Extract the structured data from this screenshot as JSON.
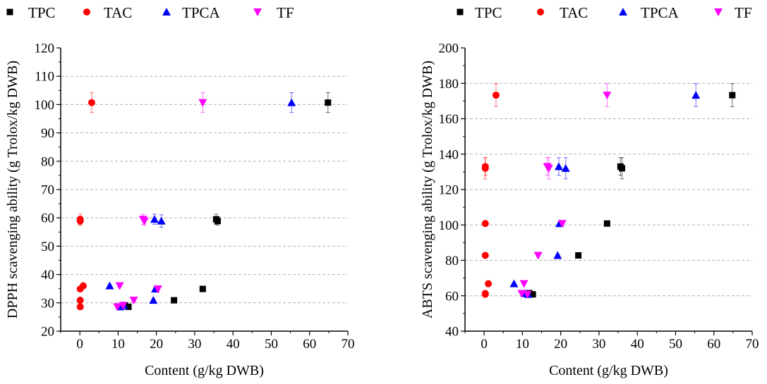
{
  "chart_data": [
    {
      "type": "scatter",
      "title": "",
      "xlabel": "Content (g/kg DWB)",
      "ylabel": "DPPH scavenging ability (g Trolox/kg DWB)",
      "xlim": [
        -5,
        70
      ],
      "ylim": [
        20,
        120
      ],
      "xticks": [
        0,
        10,
        20,
        30,
        40,
        50,
        60,
        70
      ],
      "yticks": [
        20,
        30,
        40,
        50,
        60,
        70,
        80,
        90,
        100,
        110,
        120
      ],
      "xtick_labels": [
        "0",
        "10",
        "20",
        "30",
        "40",
        "50",
        "60",
        "70"
      ],
      "ytick_labels": [
        "20",
        "30",
        "40",
        "50",
        "60",
        "70",
        "80",
        "90",
        "100",
        "110",
        "120"
      ],
      "grid": "horizontal dashed",
      "legend_position": "top",
      "series": [
        {
          "name": "TPC",
          "marker": "square",
          "color": "#000000",
          "points": [
            {
              "x": 64.8,
              "y": 100.7,
              "err": 3.5
            },
            {
              "x": 35.6,
              "y": 59.5,
              "err": 1.8
            },
            {
              "x": 36.0,
              "y": 58.9,
              "err": 1.5
            },
            {
              "x": 32.1,
              "y": 34.9,
              "err": 0.5
            },
            {
              "x": 24.6,
              "y": 30.9,
              "err": 0.5
            },
            {
              "x": 12.7,
              "y": 28.6,
              "err": 0.5
            },
            {
              "x": 11.8,
              "y": 29.1,
              "err": 0.4
            }
          ]
        },
        {
          "name": "TAC",
          "marker": "circle",
          "color": "#ff0000",
          "points": [
            {
              "x": 3.1,
              "y": 100.7,
              "err": 3.5
            },
            {
              "x": 0.1,
              "y": 59.5,
              "err": 1.8
            },
            {
              "x": 0.1,
              "y": 58.9,
              "err": 1.5
            },
            {
              "x": 0.9,
              "y": 36.0,
              "err": 0.4
            },
            {
              "x": 0.1,
              "y": 34.9,
              "err": 0.5
            },
            {
              "x": 0.1,
              "y": 30.9,
              "err": 0.5
            },
            {
              "x": 0.1,
              "y": 28.6,
              "err": 0.5
            }
          ]
        },
        {
          "name": "TPCA",
          "marker": "triangle-up",
          "color": "#0000ff",
          "points": [
            {
              "x": 55.3,
              "y": 100.7,
              "err": 3.5
            },
            {
              "x": 19.5,
              "y": 59.5,
              "err": 1.8
            },
            {
              "x": 21.3,
              "y": 58.9,
              "err": 2.2
            },
            {
              "x": 7.8,
              "y": 36.0,
              "err": 0.4
            },
            {
              "x": 19.7,
              "y": 34.9,
              "err": 0.5
            },
            {
              "x": 19.2,
              "y": 30.9,
              "err": 0.5
            },
            {
              "x": 10.6,
              "y": 28.6,
              "err": 0.5
            },
            {
              "x": 11.5,
              "y": 29.1,
              "err": 1.0
            }
          ]
        },
        {
          "name": "TF",
          "marker": "triangle-down",
          "color": "#ff00ff",
          "points": [
            {
              "x": 32.1,
              "y": 100.7,
              "err": 3.5
            },
            {
              "x": 16.5,
              "y": 59.5,
              "err": 1.8
            },
            {
              "x": 16.9,
              "y": 58.9,
              "err": 1.5
            },
            {
              "x": 10.4,
              "y": 36.0,
              "err": 0.4
            },
            {
              "x": 20.4,
              "y": 34.9,
              "err": 0.5
            },
            {
              "x": 14.1,
              "y": 30.9,
              "err": 0.5
            },
            {
              "x": 9.8,
              "y": 28.6,
              "err": 0.5
            },
            {
              "x": 11.3,
              "y": 29.1,
              "err": 0.6
            }
          ]
        }
      ]
    },
    {
      "type": "scatter",
      "title": "",
      "xlabel": "Content (g/kg DWB)",
      "ylabel": "ABTS scavenging ability (g Trolox/kg DWB)",
      "xlim": [
        -5,
        70
      ],
      "ylim": [
        40,
        200
      ],
      "xticks": [
        0,
        10,
        20,
        30,
        40,
        50,
        60,
        70
      ],
      "yticks": [
        40,
        60,
        80,
        100,
        120,
        140,
        160,
        180,
        200
      ],
      "xtick_labels": [
        "0",
        "10",
        "20",
        "30",
        "40",
        "50",
        "60",
        "70"
      ],
      "ytick_labels": [
        "40",
        "60",
        "80",
        "100",
        "120",
        "140",
        "160",
        "180",
        "200"
      ],
      "grid": "horizontal dashed",
      "legend_position": "top",
      "series": [
        {
          "name": "TPC",
          "marker": "square",
          "color": "#000000",
          "points": [
            {
              "x": 64.8,
              "y": 173.3,
              "err": 6.5
            },
            {
              "x": 35.6,
              "y": 133.0,
              "err": 5.0
            },
            {
              "x": 36.0,
              "y": 132.0,
              "err": 6.0
            },
            {
              "x": 32.1,
              "y": 100.8,
              "err": 0.6
            },
            {
              "x": 24.6,
              "y": 82.8,
              "err": 1.5
            },
            {
              "x": 12.7,
              "y": 60.8,
              "err": 0.8
            },
            {
              "x": 11.8,
              "y": 61.5,
              "err": 0.6
            }
          ]
        },
        {
          "name": "TAC",
          "marker": "circle",
          "color": "#ff0000",
          "points": [
            {
              "x": 3.1,
              "y": 173.3,
              "err": 6.5
            },
            {
              "x": 0.3,
              "y": 133.0,
              "err": 5.0
            },
            {
              "x": 0.3,
              "y": 132.0,
              "err": 6.0
            },
            {
              "x": 0.3,
              "y": 100.8,
              "err": 0.6
            },
            {
              "x": 0.3,
              "y": 82.8,
              "err": 0.6
            },
            {
              "x": 1.1,
              "y": 66.8,
              "err": 0.6
            },
            {
              "x": 0.3,
              "y": 61.3,
              "err": 0.6
            },
            {
              "x": 0.3,
              "y": 60.8,
              "err": 0.6
            }
          ]
        },
        {
          "name": "TPCA",
          "marker": "triangle-up",
          "color": "#0000ff",
          "points": [
            {
              "x": 55.3,
              "y": 173.3,
              "err": 6.5
            },
            {
              "x": 19.5,
              "y": 133.0,
              "err": 5.0
            },
            {
              "x": 21.3,
              "y": 132.0,
              "err": 6.0
            },
            {
              "x": 19.7,
              "y": 100.8,
              "err": 0.6
            },
            {
              "x": 19.2,
              "y": 82.8,
              "err": 0.6
            },
            {
              "x": 7.8,
              "y": 66.8,
              "err": 0.6
            },
            {
              "x": 10.6,
              "y": 61.3,
              "err": 0.6
            },
            {
              "x": 11.5,
              "y": 60.8,
              "err": 0.6
            }
          ]
        },
        {
          "name": "TF",
          "marker": "triangle-down",
          "color": "#ff00ff",
          "points": [
            {
              "x": 32.1,
              "y": 173.3,
              "err": 6.5
            },
            {
              "x": 16.5,
              "y": 133.0,
              "err": 5.0
            },
            {
              "x": 16.9,
              "y": 132.0,
              "err": 6.0
            },
            {
              "x": 20.4,
              "y": 100.8,
              "err": 0.6
            },
            {
              "x": 14.1,
              "y": 82.8,
              "err": 0.6
            },
            {
              "x": 10.4,
              "y": 66.8,
              "err": 0.6
            },
            {
              "x": 9.8,
              "y": 61.3,
              "err": 0.6
            },
            {
              "x": 11.3,
              "y": 60.8,
              "err": 0.6
            }
          ]
        }
      ]
    }
  ]
}
